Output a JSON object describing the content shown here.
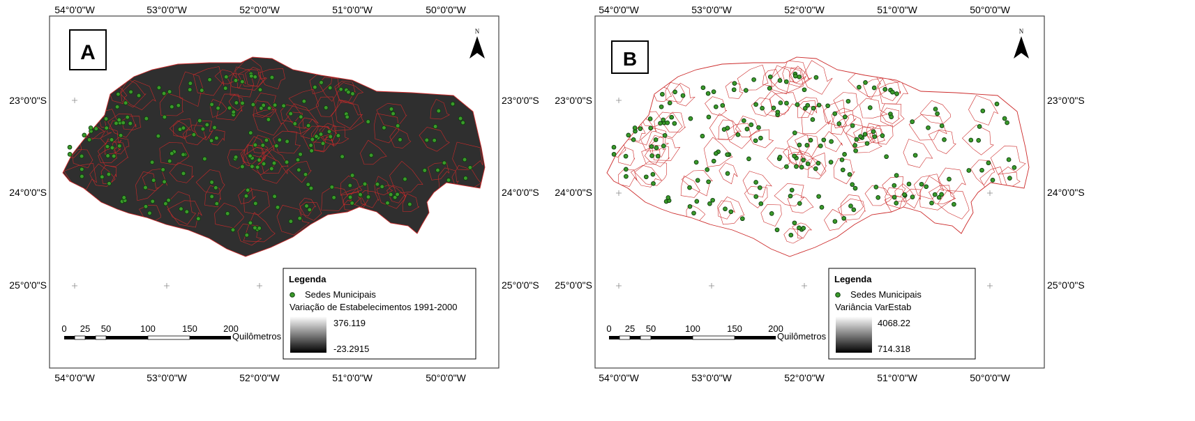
{
  "panels": [
    {
      "id": "A",
      "letter": "A",
      "lon_labels": [
        "54°0'0\"W",
        "53°0'0\"W",
        "52°0'0\"W",
        "51°0'0\"W",
        "50°0'0\"W"
      ],
      "lat_labels": [
        "23°0'0\"S",
        "24°0'0\"S",
        "25°0'0\"S"
      ],
      "north": "N",
      "legend": {
        "title": "Legenda",
        "point_label": "Sedes Municipais",
        "raster_label": "Variação de Estabelecimentos 1991-2000",
        "max": "376.119",
        "min": "-23.2915"
      },
      "scale": {
        "ticks": [
          "0",
          "25",
          "50",
          "100",
          "150",
          "200"
        ],
        "unit": "Quilômetros"
      }
    },
    {
      "id": "B",
      "letter": "B",
      "lon_labels": [
        "54°0'0\"W",
        "53°0'0\"W",
        "52°0'0\"W",
        "51°0'0\"W",
        "50°0'0\"W"
      ],
      "lat_labels": [
        "23°0'0\"S",
        "24°0'0\"S",
        "25°0'0\"S"
      ],
      "north": "N",
      "legend": {
        "title": "Legenda",
        "point_label": "Sedes Municipais",
        "raster_label": "Variância VarEstab",
        "max": "4068.22",
        "min": "714.318"
      },
      "scale": {
        "ticks": [
          "0",
          "25",
          "50",
          "100",
          "150",
          "200"
        ],
        "unit": "Quilômetros"
      }
    }
  ],
  "colors": {
    "point_fill": "#3a9a2a",
    "boundary": "#cc2a2a",
    "raster_dark": "#2e2e2e",
    "raster_light": "#ffffff"
  }
}
